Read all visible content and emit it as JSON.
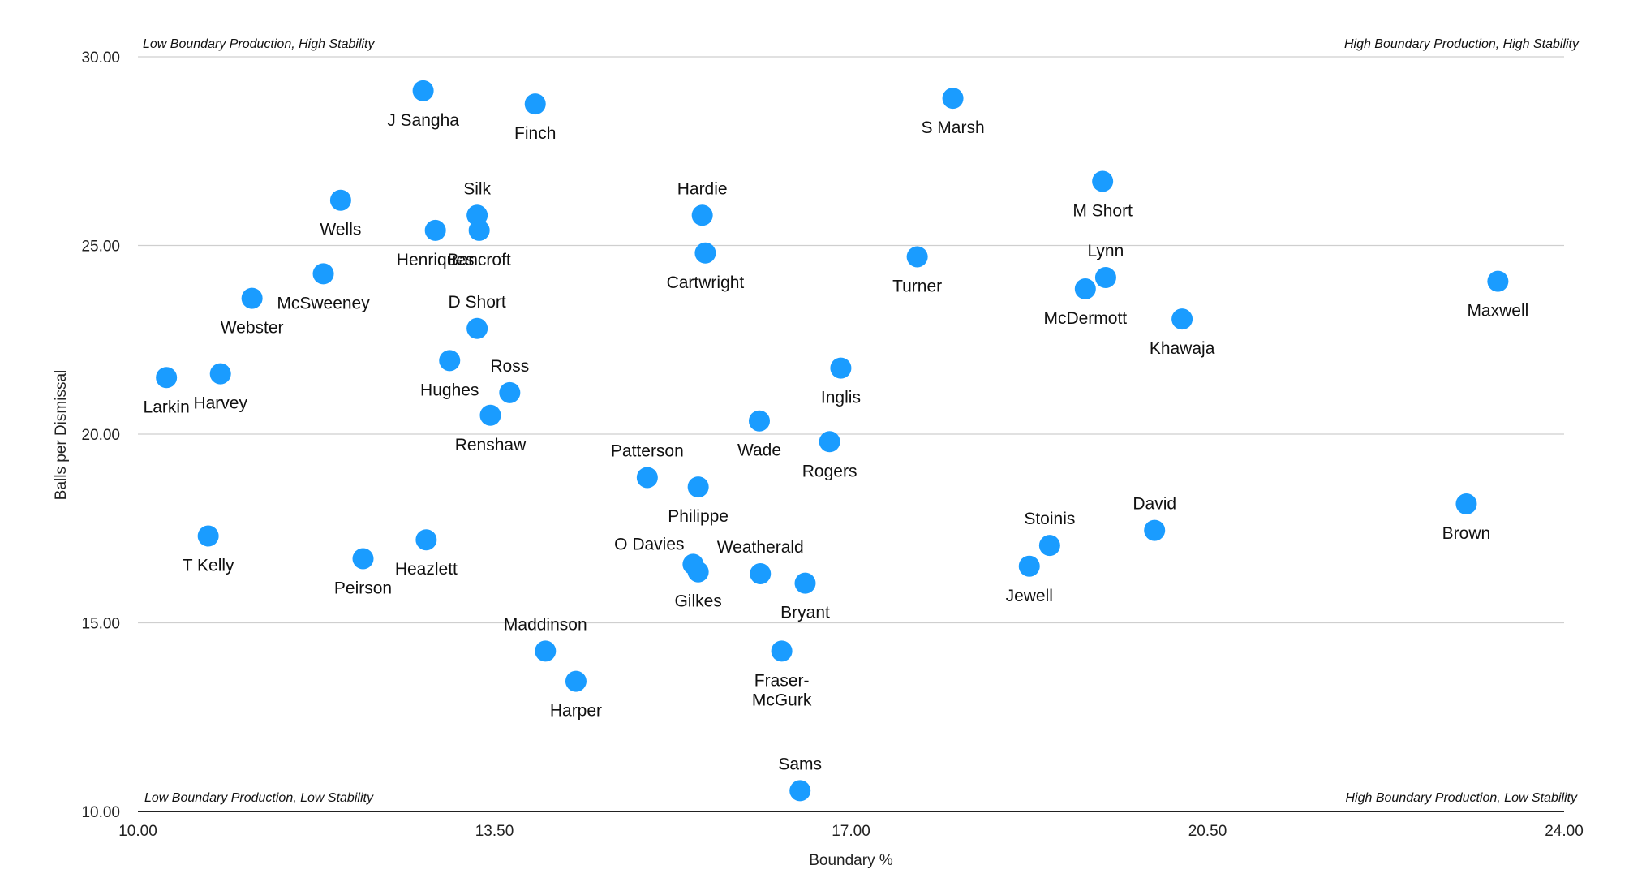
{
  "chart_data": {
    "type": "scatter",
    "xlabel": "Boundary %",
    "ylabel": "Balls per Dismissal",
    "xlim": [
      10,
      24
    ],
    "ylim": [
      10,
      30
    ],
    "xticks": [
      {
        "value": 10,
        "label": "10.00"
      },
      {
        "value": 13.5,
        "label": "13.50"
      },
      {
        "value": 17,
        "label": "17.00"
      },
      {
        "value": 20.5,
        "label": "20.50"
      },
      {
        "value": 24,
        "label": "24.00"
      }
    ],
    "yticks": [
      {
        "value": 10,
        "label": "10.00"
      },
      {
        "value": 15,
        "label": "15.00"
      },
      {
        "value": 20,
        "label": "20.00"
      },
      {
        "value": 25,
        "label": "25.00"
      },
      {
        "value": 30,
        "label": "30.00"
      }
    ],
    "grid": "horizontal",
    "marker_color": "#1a9cff",
    "quadrant_labels": {
      "top_left": "Low Boundary Production, High Stability",
      "top_right": "High Boundary Production, High Stability",
      "bottom_left": "Low Boundary Production, Low Stability",
      "bottom_right": "High Boundary Production, Low Stability"
    },
    "points": [
      {
        "name": "J Sangha",
        "x": 12.8,
        "y": 29.1,
        "label_pos": "below"
      },
      {
        "name": "Finch",
        "x": 13.9,
        "y": 28.75,
        "label_pos": "below"
      },
      {
        "name": "S Marsh",
        "x": 18.0,
        "y": 28.9,
        "label_pos": "below"
      },
      {
        "name": "Wells",
        "x": 11.99,
        "y": 26.2,
        "label_pos": "below"
      },
      {
        "name": "Silk",
        "x": 13.33,
        "y": 25.8,
        "label_pos": "above"
      },
      {
        "name": "Henriques",
        "x": 12.92,
        "y": 25.4,
        "label_pos": "below"
      },
      {
        "name": "Bancroft",
        "x": 13.35,
        "y": 25.4,
        "label_pos": "below"
      },
      {
        "name": "Hardie",
        "x": 15.54,
        "y": 25.8,
        "label_pos": "above"
      },
      {
        "name": "Cartwright",
        "x": 15.57,
        "y": 24.8,
        "label_pos": "below"
      },
      {
        "name": "M Short",
        "x": 19.47,
        "y": 26.7,
        "label_pos": "below"
      },
      {
        "name": "Turner",
        "x": 17.65,
        "y": 24.7,
        "label_pos": "below"
      },
      {
        "name": "Lynn",
        "x": 19.5,
        "y": 24.15,
        "label_pos": "above"
      },
      {
        "name": "McDermott",
        "x": 19.3,
        "y": 23.85,
        "label_pos": "below"
      },
      {
        "name": "Maxwell",
        "x": 23.35,
        "y": 24.05,
        "label_pos": "below"
      },
      {
        "name": "McSweeney",
        "x": 11.82,
        "y": 24.25,
        "label_pos": "below"
      },
      {
        "name": "Webster",
        "x": 11.12,
        "y": 23.6,
        "label_pos": "below"
      },
      {
        "name": "D Short",
        "x": 13.33,
        "y": 22.8,
        "label_pos": "above"
      },
      {
        "name": "Khawaja",
        "x": 20.25,
        "y": 23.05,
        "label_pos": "below"
      },
      {
        "name": "Hughes",
        "x": 13.06,
        "y": 21.95,
        "label_pos": "below"
      },
      {
        "name": "Ross",
        "x": 13.65,
        "y": 21.1,
        "label_pos": "above"
      },
      {
        "name": "Renshaw",
        "x": 13.46,
        "y": 20.5,
        "label_pos": "below"
      },
      {
        "name": "Inglis",
        "x": 16.9,
        "y": 21.75,
        "label_pos": "below"
      },
      {
        "name": "Larkin",
        "x": 10.28,
        "y": 21.5,
        "label_pos": "below"
      },
      {
        "name": "Harvey",
        "x": 10.81,
        "y": 21.6,
        "label_pos": "below"
      },
      {
        "name": "Wade",
        "x": 16.1,
        "y": 20.35,
        "label_pos": "below"
      },
      {
        "name": "Rogers",
        "x": 16.79,
        "y": 19.8,
        "label_pos": "below"
      },
      {
        "name": "Patterson",
        "x": 15.0,
        "y": 18.85,
        "label_pos": "above"
      },
      {
        "name": "Philippe",
        "x": 15.5,
        "y": 18.6,
        "label_pos": "below"
      },
      {
        "name": "Brown",
        "x": 23.04,
        "y": 18.15,
        "label_pos": "below"
      },
      {
        "name": "David",
        "x": 19.98,
        "y": 17.45,
        "label_pos": "above"
      },
      {
        "name": "Stoinis",
        "x": 18.95,
        "y": 17.05,
        "label_pos": "above"
      },
      {
        "name": "Jewell",
        "x": 18.75,
        "y": 16.5,
        "label_pos": "below"
      },
      {
        "name": "T Kelly",
        "x": 10.69,
        "y": 17.3,
        "label_pos": "below"
      },
      {
        "name": "Heazlett",
        "x": 12.83,
        "y": 17.2,
        "label_pos": "below"
      },
      {
        "name": "Peirson",
        "x": 12.21,
        "y": 16.7,
        "label_pos": "below"
      },
      {
        "name": "O Davies",
        "x": 15.45,
        "y": 16.55,
        "label_pos": "above-left"
      },
      {
        "name": "Gilkes",
        "x": 15.5,
        "y": 16.35,
        "label_pos": "below"
      },
      {
        "name": "Weatherald",
        "x": 16.11,
        "y": 16.3,
        "label_pos": "above"
      },
      {
        "name": "Bryant",
        "x": 16.55,
        "y": 16.05,
        "label_pos": "below"
      },
      {
        "name": "Maddinson",
        "x": 14.0,
        "y": 14.25,
        "label_pos": "above"
      },
      {
        "name": "Harper",
        "x": 14.3,
        "y": 13.45,
        "label_pos": "below"
      },
      {
        "name": "Fraser-McGurk",
        "x": 16.32,
        "y": 14.25,
        "label_pos": "below-wrap"
      },
      {
        "name": "Sams",
        "x": 16.5,
        "y": 10.55,
        "label_pos": "above"
      }
    ]
  }
}
